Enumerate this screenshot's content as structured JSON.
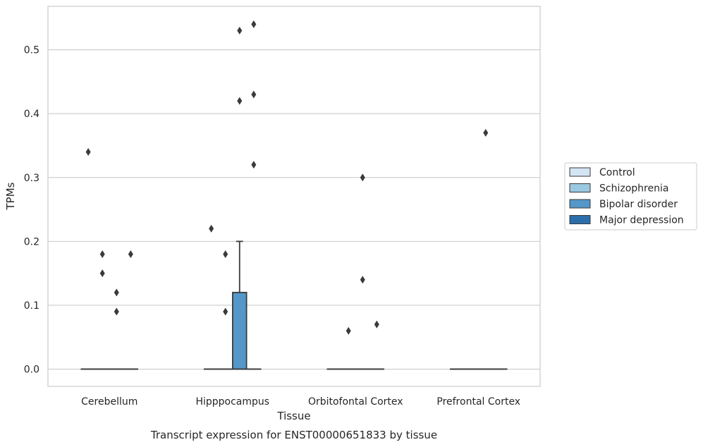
{
  "chart_data": {
    "type": "box",
    "xlabel": "Tissue",
    "ylabel": "TPMs",
    "caption": "Transcript expression for ENST00000651833 by tissue",
    "categories": [
      "Cerebellum",
      "Hipppocampus",
      "Orbitofontal Cortex",
      "Prefrontal Cortex"
    ],
    "ylim": [
      -0.027,
      0.568
    ],
    "yticks": [
      0.0,
      0.1,
      0.2,
      0.3,
      0.4,
      0.5
    ],
    "ytick_labels": [
      "0.0",
      "0.1",
      "0.2",
      "0.3",
      "0.4",
      "0.5"
    ],
    "grid": "horizontal",
    "legend_position": "right",
    "series": [
      {
        "name": "Control",
        "color": "#d3e4f3"
      },
      {
        "name": "Schizophrenia",
        "color": "#9ac8e0"
      },
      {
        "name": "Bipolar disorder",
        "color": "#5597c9"
      },
      {
        "name": "Major depression",
        "color": "#2c6eab"
      }
    ],
    "boxes": [
      {
        "category": "Cerebellum",
        "series": "Control",
        "q1": 0,
        "median": 0,
        "q3": 0,
        "whisker_low": 0,
        "whisker_high": 0,
        "outliers": [
          0.34
        ]
      },
      {
        "category": "Cerebellum",
        "series": "Schizophrenia",
        "q1": 0,
        "median": 0,
        "q3": 0,
        "whisker_low": 0,
        "whisker_high": 0,
        "outliers": [
          0.18,
          0.15
        ]
      },
      {
        "category": "Cerebellum",
        "series": "Bipolar disorder",
        "q1": 0,
        "median": 0,
        "q3": 0,
        "whisker_low": 0,
        "whisker_high": 0,
        "outliers": [
          0.12,
          0.09
        ]
      },
      {
        "category": "Cerebellum",
        "series": "Major depression",
        "q1": 0,
        "median": 0,
        "q3": 0,
        "whisker_low": 0,
        "whisker_high": 0,
        "outliers": [
          0.18
        ]
      },
      {
        "category": "Hipppocampus",
        "series": "Control",
        "q1": 0,
        "median": 0,
        "q3": 0,
        "whisker_low": 0,
        "whisker_high": 0,
        "outliers": [
          0.22
        ]
      },
      {
        "category": "Hipppocampus",
        "series": "Schizophrenia",
        "q1": 0,
        "median": 0,
        "q3": 0,
        "whisker_low": 0,
        "whisker_high": 0,
        "outliers": [
          0.18,
          0.09
        ]
      },
      {
        "category": "Hipppocampus",
        "series": "Bipolar disorder",
        "q1": 0,
        "median": 0,
        "q3": 0.12,
        "whisker_low": 0,
        "whisker_high": 0.2,
        "outliers": [
          0.53,
          0.42
        ]
      },
      {
        "category": "Hipppocampus",
        "series": "Major depression",
        "q1": 0,
        "median": 0,
        "q3": 0,
        "whisker_low": 0,
        "whisker_high": 0,
        "outliers": [
          0.54,
          0.43,
          0.32
        ]
      },
      {
        "category": "Orbitofontal Cortex",
        "series": "Control",
        "q1": 0,
        "median": 0,
        "q3": 0,
        "whisker_low": 0,
        "whisker_high": 0,
        "outliers": []
      },
      {
        "category": "Orbitofontal Cortex",
        "series": "Schizophrenia",
        "q1": 0,
        "median": 0,
        "q3": 0,
        "whisker_low": 0,
        "whisker_high": 0,
        "outliers": [
          0.06
        ]
      },
      {
        "category": "Orbitofontal Cortex",
        "series": "Bipolar disorder",
        "q1": 0,
        "median": 0,
        "q3": 0,
        "whisker_low": 0,
        "whisker_high": 0,
        "outliers": [
          0.3,
          0.14
        ]
      },
      {
        "category": "Orbitofontal Cortex",
        "series": "Major depression",
        "q1": 0,
        "median": 0,
        "q3": 0,
        "whisker_low": 0,
        "whisker_high": 0,
        "outliers": [
          0.07
        ]
      },
      {
        "category": "Prefrontal Cortex",
        "series": "Control",
        "q1": 0,
        "median": 0,
        "q3": 0,
        "whisker_low": 0,
        "whisker_high": 0,
        "outliers": []
      },
      {
        "category": "Prefrontal Cortex",
        "series": "Schizophrenia",
        "q1": 0,
        "median": 0,
        "q3": 0,
        "whisker_low": 0,
        "whisker_high": 0,
        "outliers": []
      },
      {
        "category": "Prefrontal Cortex",
        "series": "Bipolar disorder",
        "q1": 0,
        "median": 0,
        "q3": 0,
        "whisker_low": 0,
        "whisker_high": 0,
        "outliers": [
          0.37
        ]
      },
      {
        "category": "Prefrontal Cortex",
        "series": "Major depression",
        "q1": 0,
        "median": 0,
        "q3": 0,
        "whisker_low": 0,
        "whisker_high": 0,
        "outliers": []
      }
    ]
  }
}
